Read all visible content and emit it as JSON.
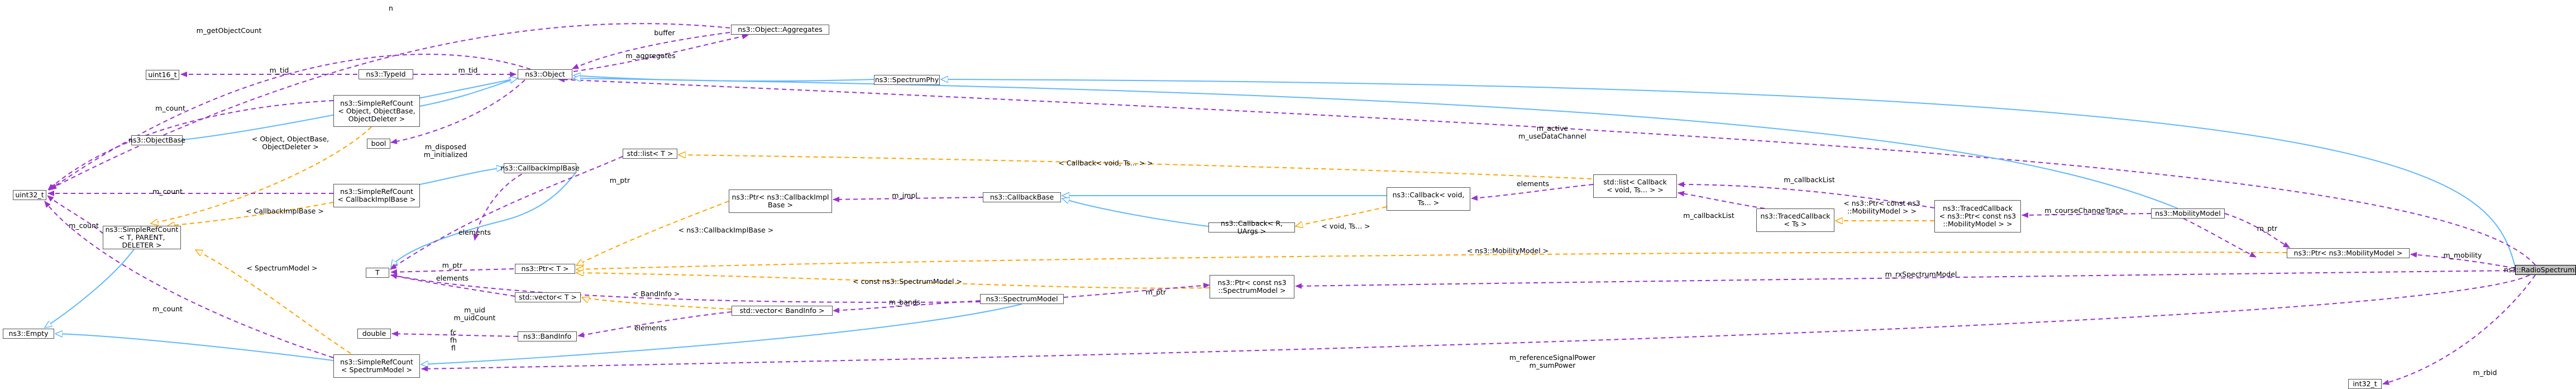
{
  "nodes": {
    "main": "ns3::RadioSpectrumPhy",
    "uint32_t": "uint32_t",
    "empty": "ns3::Empty",
    "srcT": "ns3::SimpleRefCount\n< T, PARENT, DELETER >",
    "objectBase": "ns3::ObjectBase",
    "uint16_t": "uint16_t",
    "srcObject": "ns3::SimpleRefCount\n< Object, ObjectBase,\nObjectDeleter >",
    "srcCallbackImpl": "ns3::SimpleRefCount\n< CallbackImplBase >",
    "T": "T",
    "double": "double",
    "srcSpectrumModel": "ns3::SimpleRefCount\n< SpectrumModel >",
    "typeId": "ns3::TypeId",
    "bool": "bool",
    "object": "ns3::Object",
    "aggregates": "ns3::Object::Aggregates",
    "callbackImplBase": "ns3::CallbackImplBase",
    "ptrT": "ns3::Ptr< T >",
    "vectorT": "std::vector< T >",
    "bandInfo": "ns3::BandInfo",
    "listT": "std::list< T >",
    "ptrCallbackImpl": "ns3::Ptr< ns3::CallbackImpl\nBase >",
    "vectorBandInfo": "std::vector< BandInfo >",
    "spectrumModel": "ns3::SpectrumModel",
    "callbackBase": "ns3::CallbackBase",
    "callbackRUArgs": "ns3::Callback< R, UArgs >",
    "callbackVoidTs": "ns3::Callback< void,\nTs... >",
    "spectrumPhy": "ns3::SpectrumPhy",
    "ptrConstSpectrumModel": "ns3::Ptr< const ns3\n::SpectrumModel >",
    "listCallback": "std::list< Callback\n< void, Ts... > >",
    "tracedCallbackTs": "ns3::TracedCallback\n< Ts >",
    "tracedCallbackMobility": "ns3::TracedCallback\n< ns3::Ptr< const ns3\n::MobilityModel > >",
    "mobilityModel": "ns3::MobilityModel",
    "ptrMobilityModel": "ns3::Ptr< ns3::MobilityModel >",
    "int32_t": "int32_t"
  },
  "edge_labels": {
    "m_getObjectCount": "m_getObjectCount",
    "n": "n",
    "buffer": "buffer",
    "m_aggregates": "m_aggregates",
    "m_tid": "m_tid",
    "m_tid2": "m_tid",
    "m_count1": "m_count",
    "m_count2": "m_count",
    "m_count3": "m_count",
    "m_count4": "m_count",
    "m_disposed": "m_disposed\nm_initialized",
    "objDeleter": "< Object, ObjectBase,\nObjectDeleter >",
    "cbImplBase": "< CallbackImplBase >",
    "spectrumModelTpl": "< SpectrumModel >",
    "m_ptr1": "m_ptr",
    "elements1": "elements",
    "m_ptr2": "m_ptr",
    "elements2": "elements",
    "m_impl": "m_impl",
    "ns3CallbackImplBase": "< ns3::CallbackImplBase >",
    "callbackVoidTsTpl": "< Callback< void, Ts... > >",
    "voidTs": "< void, Ts... >",
    "elements3": "elements",
    "m_callbackList": "m_callbackList",
    "m_callbackList2": "m_callbackList",
    "ptrConstMobility": "< ns3::Ptr< const ns3\n::MobilityModel > >",
    "m_courseChangeTrace": "m_courseChangeTrace",
    "m_ptr3": "m_ptr",
    "mobilityTpl": "< ns3::MobilityModel >",
    "m_mobility": "m_mobility",
    "constSpectrumModelTpl": "< const ns3::SpectrumModel >",
    "m_ptr4": "m_ptr",
    "m_rxSpectrumModel": "m_rxSpectrumModel",
    "bandInfoTpl": "< BandInfo >",
    "m_bands": "m_bands",
    "elements4": "elements",
    "m_uid": "m_uid\nm_uidCount",
    "fcfhfl": "fc\nfh\nfl",
    "m_active": "m_active\nm_useDataChannel",
    "m_refSignal": "m_referenceSignalPower\nm_sumPower",
    "m_rbid": "m_rbid"
  },
  "colors": {
    "inheritance": "#63b8ff",
    "usage": "#9a32cd",
    "template": "#ffa500",
    "node_border": "#555555",
    "highlight_fill": "#bfbfbf"
  }
}
